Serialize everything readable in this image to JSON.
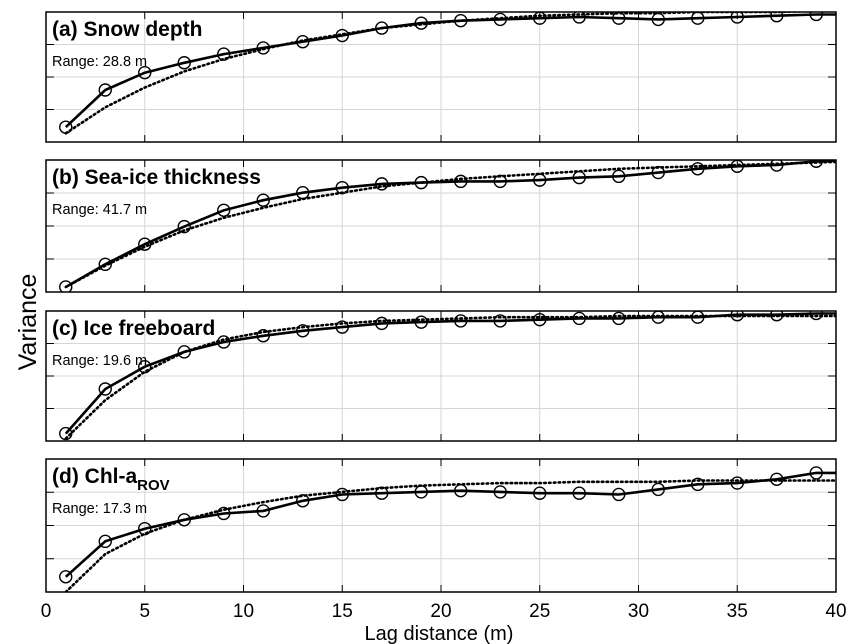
{
  "chart_data": {
    "type": "line",
    "xlabel": "Lag distance (m)",
    "ylabel": "Variance",
    "xlim": [
      0,
      40
    ],
    "x_ticks": [
      0,
      5,
      10,
      15,
      20,
      25,
      30,
      35,
      40
    ],
    "x_tick_labels": [
      "0",
      "5",
      "10",
      "15",
      "20",
      "25",
      "30",
      "35",
      "40"
    ],
    "grid": true,
    "y_tick_labels_visible": false,
    "panels": [
      {
        "title_prefix": "(a) Snow depth",
        "title_sub": "",
        "range_text": "Range: 28.8 m",
        "ylim": [
          0,
          1.05
        ],
        "series": [
          {
            "style": "solid-with-circles",
            "x": [
              1,
              3,
              5,
              7,
              9,
              11,
              13,
              15,
              17,
              19,
              21,
              23,
              25,
              27,
              29,
              31,
              33,
              35,
              37,
              39,
              41
            ],
            "y": [
              0.12,
              0.42,
              0.56,
              0.64,
              0.71,
              0.76,
              0.81,
              0.86,
              0.92,
              0.96,
              0.98,
              0.99,
              1.0,
              1.01,
              1.0,
              0.99,
              1.0,
              1.01,
              1.02,
              1.03,
              1.03
            ]
          },
          {
            "style": "dotted-model",
            "x": [
              1,
              3,
              5,
              7,
              9,
              11,
              13,
              15,
              17,
              19,
              21,
              23,
              25,
              27,
              29,
              31,
              33,
              35,
              37,
              39,
              41
            ],
            "y": [
              0.07,
              0.28,
              0.44,
              0.57,
              0.67,
              0.75,
              0.82,
              0.87,
              0.92,
              0.95,
              0.98,
              1.0,
              1.02,
              1.03,
              1.04,
              1.04,
              1.05,
              1.05,
              1.05,
              1.06,
              1.06
            ]
          }
        ]
      },
      {
        "title_prefix": "(b) Sea-ice thickness",
        "title_sub": "",
        "range_text": "Range: 41.7 m",
        "ylim": [
          0,
          1.05
        ],
        "series": [
          {
            "style": "solid-with-circles",
            "x": [
              1,
              3,
              5,
              7,
              9,
              11,
              13,
              15,
              17,
              19,
              21,
              23,
              25,
              27,
              29,
              31,
              33,
              35,
              37,
              39,
              41
            ],
            "y": [
              0.04,
              0.22,
              0.38,
              0.52,
              0.65,
              0.73,
              0.79,
              0.83,
              0.86,
              0.87,
              0.88,
              0.88,
              0.89,
              0.91,
              0.92,
              0.95,
              0.98,
              1.0,
              1.01,
              1.04,
              1.05
            ]
          },
          {
            "style": "dotted-model",
            "x": [
              1,
              3,
              5,
              7,
              9,
              11,
              13,
              15,
              17,
              19,
              21,
              23,
              25,
              27,
              29,
              31,
              33,
              35,
              37,
              39,
              41
            ],
            "y": [
              0.04,
              0.21,
              0.36,
              0.49,
              0.59,
              0.67,
              0.74,
              0.79,
              0.84,
              0.87,
              0.9,
              0.92,
              0.94,
              0.96,
              0.98,
              0.99,
              1.0,
              1.01,
              1.02,
              1.03,
              1.04
            ]
          }
        ]
      },
      {
        "title_prefix": "(c) Ice freeboard",
        "title_sub": "",
        "range_text": "Range: 19.6 m",
        "ylim": [
          0,
          1.05
        ],
        "series": [
          {
            "style": "solid-with-circles",
            "x": [
              1,
              3,
              5,
              7,
              9,
              11,
              13,
              15,
              17,
              19,
              21,
              23,
              25,
              27,
              29,
              31,
              33,
              35,
              37,
              39,
              41
            ],
            "y": [
              0.06,
              0.42,
              0.6,
              0.72,
              0.8,
              0.85,
              0.89,
              0.92,
              0.95,
              0.96,
              0.97,
              0.97,
              0.98,
              0.99,
              0.99,
              1.0,
              1.0,
              1.02,
              1.02,
              1.03,
              1.03
            ]
          },
          {
            "style": "dotted-model",
            "x": [
              1,
              3,
              5,
              7,
              9,
              11,
              13,
              15,
              17,
              19,
              21,
              23,
              25,
              27,
              29,
              31,
              33,
              35,
              37,
              39,
              41
            ],
            "y": [
              0.02,
              0.33,
              0.56,
              0.72,
              0.82,
              0.88,
              0.92,
              0.95,
              0.97,
              0.98,
              0.99,
              1.0,
              1.0,
              1.0,
              1.01,
              1.01,
              1.01,
              1.01,
              1.01,
              1.01,
              1.01
            ]
          }
        ]
      },
      {
        "title_prefix": "(d) Chl-a",
        "title_sub": "ROV",
        "range_text": "Range: 17.3 m",
        "ylim": [
          0,
          1.05
        ],
        "series": [
          {
            "style": "solid-with-circles",
            "x": [
              1,
              3,
              5,
              7,
              9,
              11,
              13,
              15,
              17,
              19,
              21,
              23,
              25,
              27,
              29,
              31,
              33,
              35,
              37,
              39,
              41
            ],
            "y": [
              0.12,
              0.4,
              0.5,
              0.57,
              0.62,
              0.64,
              0.72,
              0.77,
              0.78,
              0.79,
              0.8,
              0.79,
              0.78,
              0.78,
              0.77,
              0.81,
              0.85,
              0.86,
              0.89,
              0.94,
              0.94
            ]
          },
          {
            "style": "dotted-model",
            "x": [
              1,
              3,
              5,
              7,
              9,
              11,
              13,
              15,
              17,
              19,
              21,
              23,
              25,
              27,
              29,
              31,
              33,
              35,
              37,
              39,
              41
            ],
            "y": [
              0.0,
              0.3,
              0.46,
              0.57,
              0.65,
              0.71,
              0.76,
              0.79,
              0.82,
              0.84,
              0.85,
              0.86,
              0.86,
              0.87,
              0.87,
              0.87,
              0.88,
              0.88,
              0.88,
              0.88,
              0.88
            ]
          }
        ]
      }
    ]
  }
}
